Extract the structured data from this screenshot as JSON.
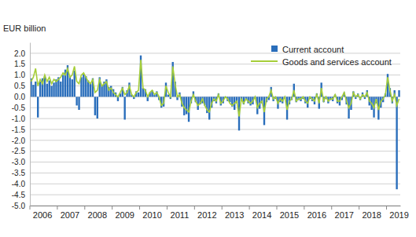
{
  "chart_data": {
    "type": "bar",
    "title": "EUR billion",
    "categories": [
      null,
      null,
      null,
      null,
      null,
      "2006",
      null,
      null,
      null,
      null,
      null,
      null,
      null,
      null,
      null,
      null,
      null,
      "2007",
      null,
      null,
      null,
      null,
      null,
      null,
      null,
      null,
      null,
      null,
      null,
      "2008",
      null,
      null,
      null,
      null,
      null,
      null,
      null,
      null,
      null,
      null,
      null,
      "2009",
      null,
      null,
      null,
      null,
      null,
      null,
      null,
      null,
      null,
      null,
      null,
      "2010",
      null,
      null,
      null,
      null,
      null,
      null,
      null,
      null,
      null,
      null,
      null,
      "2011",
      null,
      null,
      null,
      null,
      null,
      null,
      null,
      null,
      null,
      null,
      null,
      "2012",
      null,
      null,
      null,
      null,
      null,
      null,
      null,
      null,
      null,
      null,
      null,
      "2013",
      null,
      null,
      null,
      null,
      null,
      null,
      null,
      null,
      null,
      null,
      null,
      "2014",
      null,
      null,
      null,
      null,
      null,
      null,
      null,
      null,
      null,
      null,
      null,
      "2015",
      null,
      null,
      null,
      null,
      null,
      null,
      null,
      null,
      null,
      null,
      null,
      "2016",
      null,
      null,
      null,
      null,
      null,
      null,
      null,
      null,
      null,
      null,
      null,
      "2017",
      null,
      null,
      null,
      null,
      null,
      null,
      null,
      null,
      null,
      null,
      null,
      "2018",
      null,
      null,
      null,
      null,
      null,
      null,
      null,
      null,
      null,
      null,
      null,
      "2019"
    ],
    "series": [
      {
        "name": "Current account",
        "type": "bar",
        "color": "#2a6ebb",
        "values": [
          0.85,
          0.55,
          0.7,
          -0.95,
          0.7,
          0.85,
          0.95,
          0.6,
          0.75,
          0.5,
          0.65,
          0.8,
          0.9,
          0.7,
          1.0,
          1.25,
          1.45,
          0.95,
          0.8,
          1.2,
          -0.4,
          -0.6,
          0.9,
          1.05,
          0.95,
          0.75,
          0.6,
          0.85,
          -0.85,
          -1.0,
          0.9,
          0.55,
          0.7,
          0.8,
          0.45,
          0.5,
          0.35,
          0.2,
          -0.2,
          0.15,
          0.45,
          -1.05,
          0.3,
          0.65,
          0.1,
          -0.1,
          0.25,
          0.2,
          1.9,
          0.4,
          0.35,
          -0.2,
          0.2,
          0.3,
          0.1,
          0.25,
          -0.15,
          -0.5,
          -0.45,
          0.65,
          0.1,
          -0.1,
          1.6,
          0.7,
          -0.15,
          0.2,
          -0.45,
          -0.85,
          -0.8,
          -1.15,
          -0.3,
          0.25,
          -0.25,
          -0.6,
          -0.35,
          -0.3,
          -0.4,
          -0.75,
          -1.05,
          -0.5,
          -0.2,
          -0.3,
          0.15,
          -0.4,
          -0.3,
          -0.05,
          -0.2,
          -0.25,
          -0.45,
          -0.6,
          -0.3,
          -1.55,
          -0.2,
          -0.35,
          -0.15,
          -0.3,
          -0.4,
          -0.35,
          -0.1,
          -0.8,
          -0.55,
          -0.3,
          -1.3,
          -0.25,
          -0.15,
          0.45,
          -0.2,
          -0.1,
          -0.55,
          -0.25,
          -0.3,
          -0.1,
          -1.05,
          -0.35,
          -0.15,
          0.6,
          -0.25,
          -0.15,
          -0.2,
          -0.1,
          -0.3,
          -0.5,
          -0.1,
          -0.2,
          -0.35,
          0.15,
          -0.55,
          0.65,
          -0.25,
          -0.1,
          -0.3,
          -0.15,
          -0.2,
          0.1,
          -0.3,
          -0.4,
          -0.15,
          0.2,
          -0.35,
          -1.0,
          -0.6,
          0.25,
          -0.1,
          0.15,
          -0.15,
          0.2,
          -0.1,
          0.3,
          -0.4,
          -0.6,
          -0.95,
          -0.3,
          -1.05,
          -0.5,
          -0.25,
          0.15,
          1.05,
          0.4,
          -0.3,
          0.3,
          -4.25,
          0.3
        ]
      },
      {
        "name": "Goods and services account",
        "type": "line",
        "color": "#a6ce39",
        "values": [
          0.7,
          0.9,
          1.3,
          0.5,
          0.8,
          0.6,
          1.0,
          0.7,
          0.9,
          0.6,
          0.8,
          0.7,
          0.8,
          0.9,
          1.1,
          1.0,
          1.3,
          0.9,
          1.0,
          1.4,
          0.7,
          0.6,
          1.0,
          1.1,
          0.9,
          0.7,
          0.6,
          0.8,
          0.2,
          0.3,
          0.8,
          0.5,
          0.6,
          0.7,
          0.3,
          0.4,
          0.2,
          0.1,
          0.0,
          0.2,
          0.4,
          0.1,
          0.2,
          0.5,
          0.1,
          0.0,
          0.2,
          0.3,
          1.7,
          0.4,
          0.3,
          0.0,
          0.2,
          0.3,
          0.1,
          0.2,
          0.0,
          -0.4,
          -0.3,
          0.5,
          0.2,
          0.0,
          1.4,
          0.6,
          0.0,
          0.1,
          -0.3,
          -0.5,
          -0.6,
          -0.7,
          -0.2,
          0.1,
          -0.2,
          -0.4,
          -0.3,
          -0.1,
          -0.4,
          -0.6,
          -0.7,
          -0.3,
          -0.1,
          -0.2,
          0.1,
          -0.3,
          -0.2,
          0.0,
          -0.1,
          -0.3,
          -0.4,
          -0.3,
          -0.2,
          -0.9,
          -0.1,
          -0.3,
          -0.1,
          -0.2,
          -0.3,
          -0.2,
          0.0,
          -0.5,
          -0.3,
          -0.2,
          -0.7,
          -0.1,
          0.0,
          0.3,
          -0.1,
          0.0,
          -0.3,
          -0.1,
          -0.2,
          0.0,
          -0.6,
          -0.2,
          -0.1,
          0.3,
          -0.2,
          -0.1,
          -0.1,
          0.0,
          -0.2,
          -0.3,
          0.0,
          -0.1,
          -0.2,
          0.1,
          -0.3,
          0.4,
          -0.2,
          0.0,
          -0.2,
          -0.1,
          -0.1,
          0.1,
          -0.2,
          -0.2,
          0.0,
          0.2,
          -0.2,
          -0.5,
          -0.3,
          0.2,
          0.0,
          0.1,
          -0.1,
          0.1,
          0.0,
          0.2,
          -0.2,
          -0.3,
          -0.5,
          -0.1,
          -0.6,
          -0.2,
          -0.1,
          0.1,
          0.9,
          0.3,
          -0.2,
          0.1,
          -0.4,
          -0.1
        ]
      }
    ],
    "ylim": [
      -5,
      2.5
    ],
    "yticks": [
      {
        "value": -5,
        "label": "-5.0"
      },
      {
        "value": -4.5,
        "label": "-4.5"
      },
      {
        "value": -4,
        "label": "-4.0"
      },
      {
        "value": -3.5,
        "label": "-3.5"
      },
      {
        "value": -3,
        "label": "-3.0"
      },
      {
        "value": -2.5,
        "label": "-2.5"
      },
      {
        "value": -2,
        "label": "-2.0"
      },
      {
        "value": -1.5,
        "label": "-1.5"
      },
      {
        "value": -1,
        "label": "-1.0"
      },
      {
        "value": -0.5,
        "label": "-0.5"
      },
      {
        "value": 0,
        "label": "0.0"
      },
      {
        "value": 0.5,
        "label": "0.5"
      },
      {
        "value": 1,
        "label": "1.0"
      },
      {
        "value": 1.5,
        "label": "1.5"
      },
      {
        "value": 2,
        "label": "2.0"
      }
    ],
    "grid": true,
    "legend": "top-right"
  }
}
